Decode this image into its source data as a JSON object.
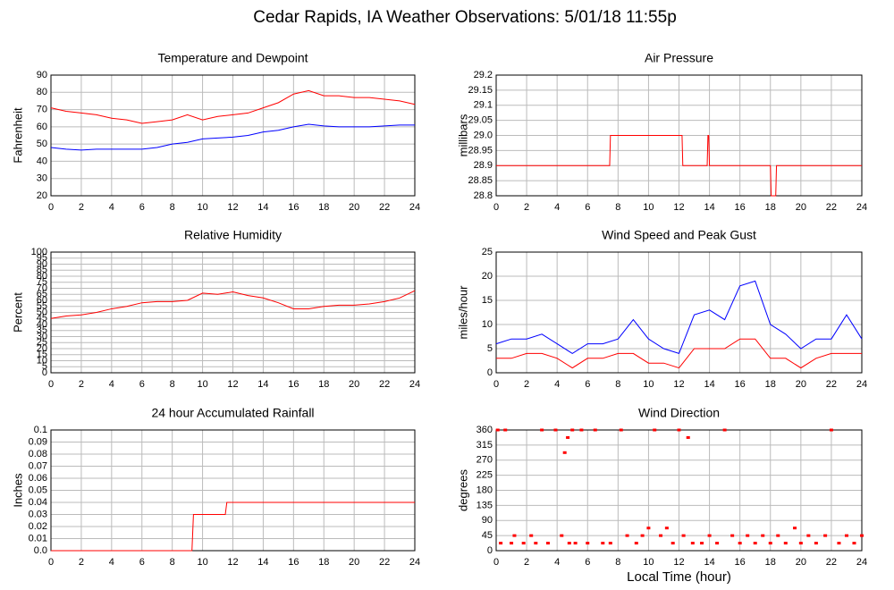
{
  "title": "Cedar Rapids, IA Weather Observations: 5/01/18 11:55p",
  "chart_data": [
    {
      "type": "line",
      "title": "Temperature and Dewpoint",
      "ylabel": "Fahrenheit",
      "x": [
        0,
        1,
        2,
        3,
        4,
        5,
        6,
        7,
        8,
        9,
        10,
        11,
        12,
        13,
        14,
        15,
        16,
        17,
        18,
        19,
        20,
        21,
        22,
        23,
        24
      ],
      "series": [
        {
          "color": "#ff0000",
          "values": [
            71,
            69,
            68,
            67,
            65,
            64,
            62,
            63,
            64,
            67,
            64,
            66,
            67,
            68,
            71,
            74,
            79,
            81,
            78,
            78,
            77,
            77,
            76,
            75,
            73
          ]
        },
        {
          "color": "#0000ff",
          "values": [
            48,
            47,
            46.5,
            47,
            47,
            47,
            47,
            48,
            50,
            51,
            53,
            53.5,
            54,
            55,
            57,
            58,
            60,
            61.5,
            60.5,
            60,
            60,
            60,
            60.5,
            61,
            61
          ]
        }
      ],
      "xlim": [
        0,
        24
      ],
      "xticks": [
        0,
        2,
        4,
        6,
        8,
        10,
        12,
        14,
        16,
        18,
        20,
        22,
        24
      ],
      "ylim": [
        20,
        90
      ],
      "yticks": [
        20,
        30,
        40,
        50,
        60,
        70,
        80,
        90
      ],
      "grid": true
    },
    {
      "type": "line",
      "title": "Air Pressure",
      "ylabel": "millibars",
      "x": [
        0,
        7.45,
        7.5,
        12.2,
        12.25,
        13.85,
        13.9,
        13.95,
        14.0,
        18.0,
        18.05,
        18.35,
        18.4,
        24
      ],
      "series": [
        {
          "color": "#ff0000",
          "values": [
            28.9,
            28.9,
            29,
            29,
            28.9,
            28.9,
            29,
            29,
            28.9,
            28.9,
            28.8,
            28.8,
            28.9,
            28.9
          ]
        }
      ],
      "xlim": [
        0,
        24
      ],
      "xticks": [
        0,
        2,
        4,
        6,
        8,
        10,
        12,
        14,
        16,
        18,
        20,
        22,
        24
      ],
      "ylim": [
        28.8,
        29.2
      ],
      "yticks": [
        28.8,
        28.85,
        28.9,
        28.95,
        {
          "value": 29,
          "label": "29.0"
        },
        29.05,
        29.1,
        29.15,
        29.2
      ],
      "grid": true
    },
    {
      "type": "line",
      "title": "Relative Humidity",
      "ylabel": "Percent",
      "x": [
        0,
        1,
        2,
        3,
        4,
        5,
        6,
        7,
        8,
        9,
        10,
        11,
        12,
        13,
        14,
        15,
        16,
        17,
        18,
        19,
        20,
        21,
        22,
        23,
        24
      ],
      "series": [
        {
          "color": "#ff0000",
          "values": [
            45,
            47,
            48,
            50,
            53,
            55,
            58,
            59,
            59,
            60,
            66,
            65,
            67,
            64,
            62,
            58,
            53,
            53,
            55,
            56,
            56,
            57,
            59,
            62,
            68
          ]
        }
      ],
      "xlim": [
        0,
        24
      ],
      "xticks": [
        0,
        2,
        4,
        6,
        8,
        10,
        12,
        14,
        16,
        18,
        20,
        22,
        24
      ],
      "ylim": [
        0,
        100
      ],
      "yticks": [
        0,
        5,
        10,
        15,
        20,
        25,
        30,
        35,
        40,
        45,
        50,
        55,
        60,
        65,
        70,
        75,
        80,
        85,
        90,
        95,
        100
      ],
      "grid": true
    },
    {
      "type": "line",
      "title": "Wind Speed and Peak Gust",
      "ylabel": "miles/hour",
      "x": [
        0,
        1,
        2,
        3,
        4,
        5,
        6,
        7,
        8,
        9,
        10,
        11,
        12,
        13,
        14,
        15,
        16,
        17,
        18,
        19,
        20,
        21,
        22,
        23,
        24
      ],
      "series": [
        {
          "color": "#0000ff",
          "values": [
            6,
            7,
            7,
            8,
            6,
            4,
            6,
            6,
            7,
            11,
            7,
            5,
            4,
            12,
            13,
            11,
            18,
            19,
            10,
            8,
            5,
            7,
            7,
            12,
            7
          ]
        },
        {
          "color": "#ff0000",
          "values": [
            3,
            3,
            4,
            4,
            3,
            1,
            3,
            3,
            4,
            4,
            2,
            2,
            1,
            5,
            5,
            5,
            7,
            7,
            3,
            3,
            1,
            3,
            4,
            4,
            4
          ]
        }
      ],
      "xlim": [
        0,
        24
      ],
      "xticks": [
        0,
        2,
        4,
        6,
        8,
        10,
        12,
        14,
        16,
        18,
        20,
        22,
        24
      ],
      "ylim": [
        0,
        25
      ],
      "yticks": [
        0,
        5,
        10,
        15,
        20,
        25
      ],
      "grid": true
    },
    {
      "type": "line",
      "title": "24 hour Accumulated Rainfall",
      "ylabel": "Inches",
      "x": [
        0,
        9.3,
        9.4,
        11.5,
        11.6,
        24
      ],
      "series": [
        {
          "color": "#ff0000",
          "values": [
            0,
            0,
            0.03,
            0.03,
            0.04,
            0.04
          ]
        }
      ],
      "xlim": [
        0,
        24
      ],
      "xticks": [
        0,
        2,
        4,
        6,
        8,
        10,
        12,
        14,
        16,
        18,
        20,
        22,
        24
      ],
      "ylim": [
        0,
        0.1
      ],
      "yticks": [
        {
          "value": 0,
          "label": "0.0"
        },
        0.01,
        0.02,
        0.03,
        0.04,
        0.05,
        0.06,
        0.07,
        0.08,
        0.09,
        0.1
      ],
      "grid": true
    },
    {
      "type": "scatter",
      "title": "Wind Direction",
      "ylabel": "degrees",
      "xlabel": "Local Time (hour)",
      "x": [
        0.1,
        0.3,
        0.6,
        1.0,
        1.2,
        1.8,
        2.3,
        2.6,
        3.0,
        3.4,
        3.9,
        4.3,
        4.5,
        4.7,
        4.8,
        5.0,
        5.2,
        5.6,
        6.0,
        6.5,
        7.0,
        7.5,
        8.2,
        8.6,
        9.2,
        9.6,
        10.0,
        10.4,
        10.8,
        11.2,
        11.6,
        12.0,
        12.3,
        12.6,
        12.9,
        13.5,
        14.0,
        14.5,
        15.0,
        15.5,
        16.0,
        16.5,
        17.0,
        17.5,
        18.0,
        18.5,
        19.0,
        19.6,
        20.0,
        20.5,
        21.0,
        21.6,
        22.0,
        22.5,
        23.0,
        23.5,
        24.0
      ],
      "series": [
        {
          "color": "#ff0000",
          "values": [
            360,
            22.5,
            360,
            22.5,
            45,
            22.5,
            45,
            22.5,
            360,
            22.5,
            360,
            45,
            292.5,
            337.5,
            22.5,
            360,
            22.5,
            360,
            22.5,
            360,
            22.5,
            22.5,
            360,
            45,
            22.5,
            45,
            67.5,
            360,
            45,
            67.5,
            22.5,
            360,
            45,
            337.5,
            22.5,
            22.5,
            45,
            22.5,
            360,
            45,
            22.5,
            45,
            22.5,
            45,
            22.5,
            45,
            22.5,
            67.5,
            22.5,
            45,
            22.5,
            45,
            360,
            22.5,
            45,
            22.5,
            45
          ]
        }
      ],
      "xlim": [
        0,
        24
      ],
      "xticks": [
        0,
        2,
        4,
        6,
        8,
        10,
        12,
        14,
        16,
        18,
        20,
        22,
        24
      ],
      "ylim": [
        0,
        360
      ],
      "yticks": [
        0,
        45,
        90,
        135,
        180,
        225,
        270,
        315,
        360
      ],
      "grid": true
    }
  ]
}
